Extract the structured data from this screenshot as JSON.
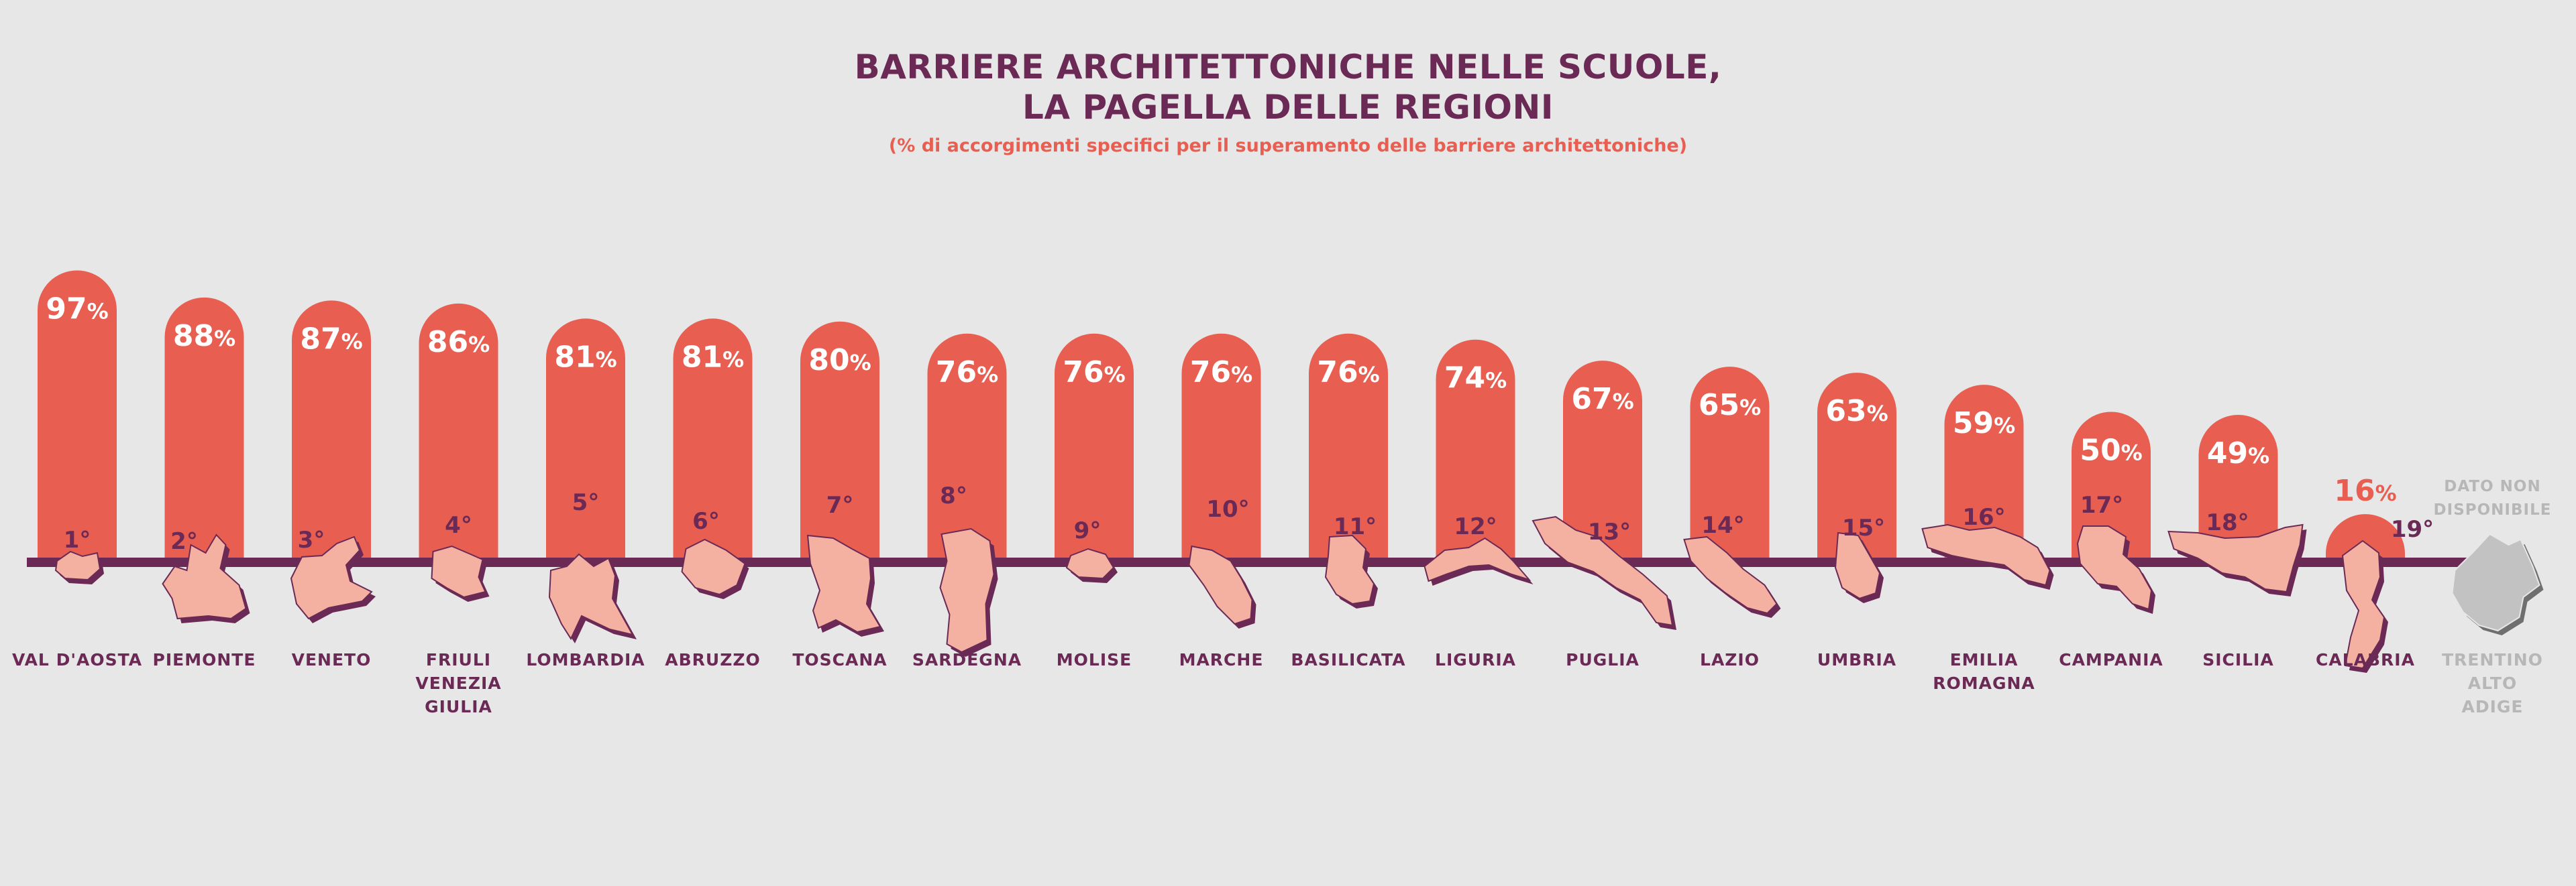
{
  "colors": {
    "bar": "#e85f52",
    "baseline": "#6b2a55",
    "region_fill": "#f4b0a0",
    "region_shadow": "#6b2a55",
    "text_dark": "#6b2a55",
    "not_available": "#b7b7b7",
    "background": "#e7e7e7"
  },
  "chart_data": {
    "type": "bar",
    "title": "BARRIERE ARCHITETTONICHE NELLE SCUOLE,\nLA PAGELLA DELLE REGIONI",
    "title_lines": [
      "BARRIERE ARCHITETTONICHE NELLE SCUOLE,",
      "LA PAGELLA DELLE REGIONI"
    ],
    "subtitle": "(% di accorgimenti specifici per il superamento delle barriere architettoniche)",
    "unit": "%",
    "ylim": [
      0,
      100
    ],
    "grid": false,
    "legend": "none",
    "categories": [
      "VAL D'AOSTA",
      "PIEMONTE",
      "VENETO",
      "FRIULI VENEZIA GIULIA",
      "LOMBARDIA",
      "ABRUZZO",
      "TOSCANA",
      "SARDEGNA",
      "MOLISE",
      "MARCHE",
      "BASILICATA",
      "LIGURIA",
      "PUGLIA",
      "LAZIO",
      "UMBRIA",
      "EMILIA ROMAGNA",
      "CAMPANIA",
      "SICILIA",
      "CALABRIA",
      "TRENTINO ALTO ADIGE"
    ],
    "category_lines": [
      [
        "VAL D'AOSTA"
      ],
      [
        "PIEMONTE"
      ],
      [
        "VENETO"
      ],
      [
        "FRIULI",
        "VENEZIA",
        "GIULIA"
      ],
      [
        "LOMBARDIA"
      ],
      [
        "ABRUZZO"
      ],
      [
        "TOSCANA"
      ],
      [
        "SARDEGNA"
      ],
      [
        "MOLISE"
      ],
      [
        "MARCHE"
      ],
      [
        "BASILICATA"
      ],
      [
        "LIGURIA"
      ],
      [
        "PUGLIA"
      ],
      [
        "LAZIO"
      ],
      [
        "UMBRIA"
      ],
      [
        "EMILIA",
        "ROMAGNA"
      ],
      [
        "CAMPANIA"
      ],
      [
        "SICILIA"
      ],
      [
        "CALABRIA"
      ],
      [
        "TRENTINO",
        "ALTO",
        "ADIGE"
      ]
    ],
    "values": [
      97,
      88,
      87,
      86,
      81,
      81,
      80,
      76,
      76,
      76,
      76,
      74,
      67,
      65,
      63,
      59,
      50,
      49,
      16,
      null
    ],
    "ranks": [
      "1°",
      "2°",
      "3°",
      "4°",
      "5°",
      "6°",
      "7°",
      "8°",
      "9°",
      "10°",
      "11°",
      "12°",
      "13°",
      "14°",
      "15°",
      "16°",
      "17°",
      "18°",
      "19°",
      null
    ],
    "not_available_lines": [
      "DATO NON",
      "DISPONIBILE"
    ],
    "region_icons": [
      "val-daosta-map-icon",
      "piemonte-map-icon",
      "veneto-map-icon",
      "friuli-map-icon",
      "lombardia-map-icon",
      "abruzzo-map-icon",
      "toscana-map-icon",
      "sardegna-map-icon",
      "molise-map-icon",
      "marche-map-icon",
      "basilicata-map-icon",
      "liguria-map-icon",
      "puglia-map-icon",
      "lazio-map-icon",
      "umbria-map-icon",
      "emilia-romagna-map-icon",
      "campania-map-icon",
      "sicilia-map-icon",
      "calabria-map-icon",
      "trentino-map-icon"
    ]
  }
}
